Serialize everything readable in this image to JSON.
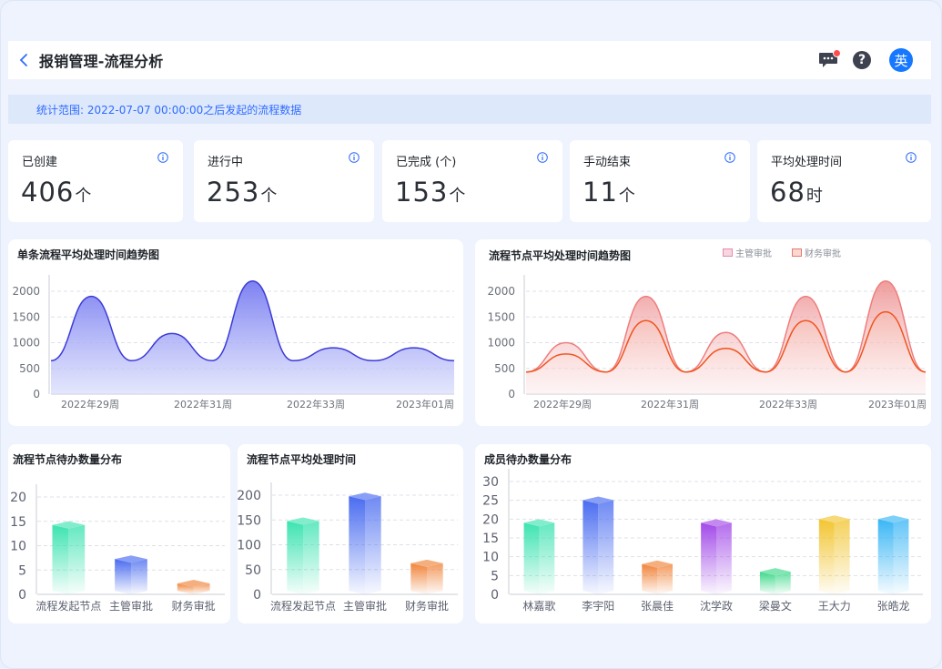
{
  "header": {
    "title": "报销管理-流程分析",
    "back_icon": "chevron-left-icon",
    "icons": [
      "message-icon",
      "help-icon"
    ],
    "avatar_text": "英",
    "accent": "#1677ff"
  },
  "notice": {
    "text": "统计范围: 2022-07-07 00:00:00之后发起的流程数据"
  },
  "stats": [
    {
      "label": "已创建",
      "value": "406",
      "unit": "个"
    },
    {
      "label": "进行中",
      "value": "253",
      "unit": "个"
    },
    {
      "label": "已完成 (个)",
      "value": "153",
      "unit": "个"
    },
    {
      "label": "手动结束",
      "value": "11",
      "unit": "个"
    },
    {
      "label": "平均处理时间",
      "value": "68",
      "unit": "时"
    }
  ],
  "chart_data": [
    {
      "type": "area",
      "title": "单条流程平均处理时间趋势图",
      "x_ticks": [
        "2022年29周",
        "2022年31周",
        "2022年33周",
        "2023年01周"
      ],
      "y_ticks": [
        "0",
        "500",
        "1000",
        "1500",
        "2000"
      ],
      "ylim": [
        0,
        2000
      ],
      "series": [
        {
          "values": [
            650,
            1900,
            650,
            1180,
            650,
            2200,
            650,
            900,
            650,
            900,
            650
          ],
          "color": "#3b3bd6"
        }
      ]
    },
    {
      "type": "area",
      "title": "流程节点平均处理时间趋势图",
      "x_ticks": [
        "2022年29周",
        "2022年31周",
        "2022年33周",
        "2023年01周"
      ],
      "y_ticks": [
        "0",
        "500",
        "1000",
        "1500",
        "2000"
      ],
      "ylim": [
        0,
        2000
      ],
      "legend": [
        "主管审批",
        "财务审批"
      ],
      "series": [
        {
          "name": "主管审批",
          "values": [
            430,
            1000,
            430,
            1900,
            430,
            1200,
            430,
            1900,
            430,
            2200,
            430
          ],
          "color": "#f07c7c"
        },
        {
          "name": "财务审批",
          "values": [
            430,
            780,
            430,
            1430,
            430,
            890,
            430,
            1430,
            430,
            1600,
            430
          ],
          "color": "#f0541e"
        }
      ]
    },
    {
      "type": "bar",
      "title": "流程节点待办数量分布",
      "categories": [
        "流程发起节点",
        "主管审批",
        "财务审批"
      ],
      "values": [
        15,
        8,
        3
      ],
      "ylim": [
        0,
        20
      ],
      "y_ticks": [
        "0",
        "5",
        "10",
        "15",
        "20"
      ],
      "colors": [
        "#3de3b0",
        "#4a6cf0",
        "#f0843a"
      ]
    },
    {
      "type": "bar",
      "title": "流程节点平均处理时间",
      "categories": [
        "流程发起节点",
        "主管审批",
        "财务审批"
      ],
      "values": [
        155,
        205,
        70
      ],
      "ylim": [
        0,
        200
      ],
      "y_ticks": [
        "0",
        "50",
        "100",
        "150",
        "200"
      ],
      "colors": [
        "#3de3b0",
        "#4a6cf0",
        "#f0843a"
      ]
    },
    {
      "type": "bar",
      "title": "成员待办数量分布",
      "categories": [
        "林嘉歌",
        "李宇阳",
        "张晨佳",
        "沈学政",
        "梁曼文",
        "王大力",
        "张皓龙"
      ],
      "values": [
        20,
        26,
        9,
        20,
        7,
        21,
        21
      ],
      "ylim": [
        0,
        30
      ],
      "y_ticks": [
        "0",
        "5",
        "10",
        "15",
        "20",
        "25",
        "30"
      ],
      "colors": [
        "#3de3b0",
        "#4a6cf0",
        "#f0843a",
        "#a24ae8",
        "#3ed98a",
        "#f2c531",
        "#3ab6f5"
      ]
    }
  ]
}
